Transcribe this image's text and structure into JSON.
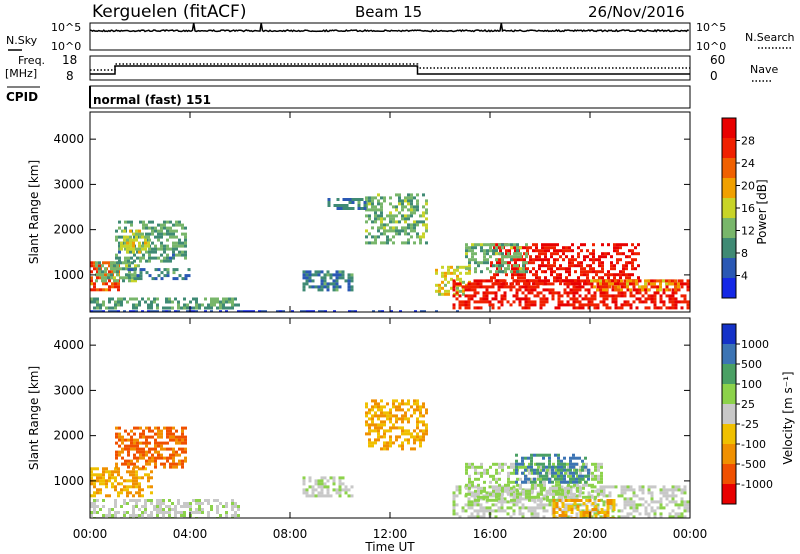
{
  "header": {
    "station": "Kerguelen (fitACF)",
    "beam": "Beam 15",
    "date": "26/Nov/2016"
  },
  "control": {
    "nsky_label": "N.Sky",
    "nsky_ticks": [
      "10^5",
      "10^0"
    ],
    "nsearch_label": "N.Search",
    "nsearch_ticks": [
      "10^5",
      "10^0"
    ],
    "freq_label_1": "Freq.",
    "freq_label_2": "[MHz]",
    "freq_ticks": [
      "18",
      "8"
    ],
    "nave_label": "Nave",
    "nave_ticks": [
      "60",
      "0"
    ],
    "cpid_label": "CPID",
    "cpid_text": "normal (fast) 151"
  },
  "x_axis": {
    "label": "Time UT",
    "range_hours": [
      0,
      24
    ],
    "ticks": [
      "00:00",
      "04:00",
      "08:00",
      "12:00",
      "16:00",
      "20:00",
      "00:00"
    ]
  },
  "colors": {
    "power_scale": [
      "#1428e6",
      "#2a58b4",
      "#3f8a74",
      "#78b66a",
      "#c8d428",
      "#f0a000",
      "#f06000",
      "#f02000",
      "#e80000"
    ],
    "velocity_scale": [
      "#1432c8",
      "#3c74b4",
      "#4aa064",
      "#8cd24a",
      "#c8c8c8",
      "#f0c000",
      "#f09000",
      "#f05000",
      "#e80000"
    ]
  },
  "chart_data": [
    {
      "type": "heatmap",
      "panel": "power",
      "ylabel": "Slant Range [km]",
      "ylim_km": [
        180,
        4600
      ],
      "yticks": [
        1000,
        2000,
        3000,
        4000
      ],
      "colorbar_label": "Power [dB]",
      "colorbar_ticks": [
        "4",
        "8",
        "12",
        "16",
        "20",
        "24",
        "28"
      ],
      "colorbar_range_db": [
        0,
        32
      ],
      "regions": [
        {
          "t": [
            0.0,
            1.2
          ],
          "r": [
            700,
            1300
          ],
          "value": 24
        },
        {
          "t": [
            0.2,
            2.0
          ],
          "r": [
            900,
            1300
          ],
          "value": 12
        },
        {
          "t": [
            1.0,
            3.8
          ],
          "r": [
            1300,
            2200
          ],
          "value": 10
        },
        {
          "t": [
            1.2,
            2.4
          ],
          "r": [
            1500,
            2000
          ],
          "value": 16
        },
        {
          "t": [
            1.5,
            4.0
          ],
          "r": [
            950,
            1150
          ],
          "value": 8
        },
        {
          "t": [
            0.0,
            6.0
          ],
          "r": [
            250,
            500
          ],
          "value": 10
        },
        {
          "t": [
            0.0,
            15.0
          ],
          "r": [
            190,
            220
          ],
          "value": 4
        },
        {
          "t": [
            8.5,
            10.5
          ],
          "r": [
            700,
            1100
          ],
          "value": 8
        },
        {
          "t": [
            11.0,
            13.5
          ],
          "r": [
            1700,
            2800
          ],
          "value": 12
        },
        {
          "t": [
            9.5,
            11.0
          ],
          "r": [
            2500,
            2700
          ],
          "value": 8
        },
        {
          "t": [
            13.8,
            15.2
          ],
          "r": [
            600,
            1200
          ],
          "value": 16
        },
        {
          "t": [
            14.5,
            24.0
          ],
          "r": [
            300,
            900
          ],
          "value": 28
        },
        {
          "t": [
            16.0,
            22.0
          ],
          "r": [
            800,
            1700
          ],
          "value": 28
        },
        {
          "t": [
            15.0,
            17.5
          ],
          "r": [
            1100,
            1700
          ],
          "value": 12
        },
        {
          "t": [
            20.0,
            23.5
          ],
          "r": [
            700,
            900
          ],
          "value": 20
        }
      ]
    },
    {
      "type": "heatmap",
      "panel": "velocity",
      "ylabel": "Slant Range [km]",
      "ylim_km": [
        180,
        4600
      ],
      "yticks": [
        1000,
        2000,
        3000,
        4000
      ],
      "colorbar_label": "Velocity [m s⁻¹]",
      "colorbar_ticks": [
        "1000",
        "500",
        "100",
        "25",
        "-25",
        "-100",
        "-500",
        "-1000"
      ],
      "regions": [
        {
          "t": [
            0.0,
            2.5
          ],
          "r": [
            700,
            1300
          ],
          "value": -100
        },
        {
          "t": [
            1.0,
            3.8
          ],
          "r": [
            1300,
            2200
          ],
          "value": -500
        },
        {
          "t": [
            0.0,
            6.0
          ],
          "r": [
            200,
            600
          ],
          "value": 0
        },
        {
          "t": [
            8.5,
            10.5
          ],
          "r": [
            700,
            1100
          ],
          "value": 0
        },
        {
          "t": [
            11.0,
            13.5
          ],
          "r": [
            1700,
            2800
          ],
          "value": -100
        },
        {
          "t": [
            14.5,
            24.0
          ],
          "r": [
            200,
            900
          ],
          "value": 0
        },
        {
          "t": [
            15.0,
            20.5
          ],
          "r": [
            600,
            1400
          ],
          "value": 100
        },
        {
          "t": [
            17.0,
            20.0
          ],
          "r": [
            1000,
            1600
          ],
          "value": 500
        },
        {
          "t": [
            18.5,
            21.0
          ],
          "r": [
            200,
            600
          ],
          "value": -100
        }
      ]
    }
  ]
}
